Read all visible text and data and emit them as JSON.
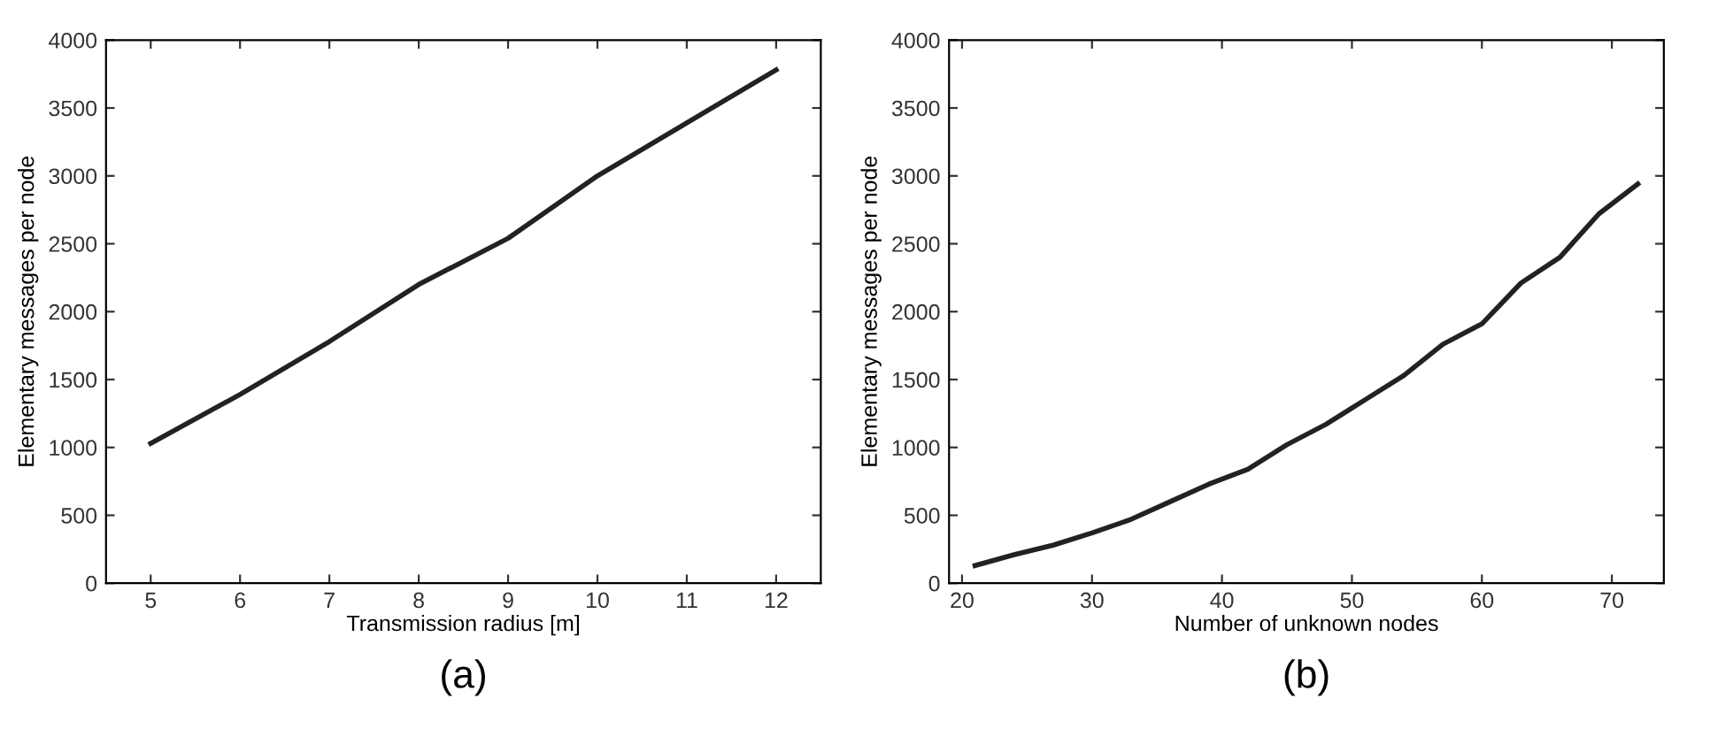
{
  "chart_data": [
    {
      "type": "line",
      "xlabel": "Transmission radius [m]",
      "ylabel": "Elementary messages per node",
      "annotations": [
        "(a)"
      ],
      "x": [
        5,
        6,
        7,
        8,
        9,
        10,
        11,
        12
      ],
      "series": [
        {
          "color": "#222222",
          "values": [
            1030,
            1390,
            1780,
            2200,
            2540,
            3000,
            3390,
            3780
          ]
        }
      ],
      "xlim": [
        4.5,
        12.5
      ],
      "xticks": [
        5,
        6,
        7,
        8,
        9,
        10,
        11,
        12
      ],
      "ylim": [
        0,
        4000
      ],
      "yticks": [
        0,
        500,
        1000,
        1500,
        2000,
        2500,
        3000,
        3500,
        4000
      ],
      "grid": false,
      "legend": false,
      "line_style": "solid"
    },
    {
      "type": "line",
      "xlabel": "Number of unknown nodes",
      "ylabel": "Elementary messages per node",
      "annotations": [
        "(b)"
      ],
      "x": [
        21,
        24,
        27,
        30,
        33,
        36,
        39,
        42,
        45,
        48,
        51,
        54,
        57,
        60,
        63,
        66,
        69,
        72
      ],
      "series": [
        {
          "color": "#222222",
          "values": [
            130,
            210,
            280,
            370,
            470,
            600,
            730,
            840,
            1020,
            1170,
            1350,
            1530,
            1760,
            1910,
            2210,
            2400,
            2720,
            2940
          ]
        }
      ],
      "xlim": [
        19,
        74
      ],
      "xticks": [
        20,
        30,
        40,
        50,
        60,
        70
      ],
      "ylim": [
        0,
        4000
      ],
      "yticks": [
        0,
        500,
        1000,
        1500,
        2000,
        2500,
        3000,
        3500,
        4000
      ],
      "grid": false,
      "legend": false,
      "line_style": "solid"
    }
  ]
}
